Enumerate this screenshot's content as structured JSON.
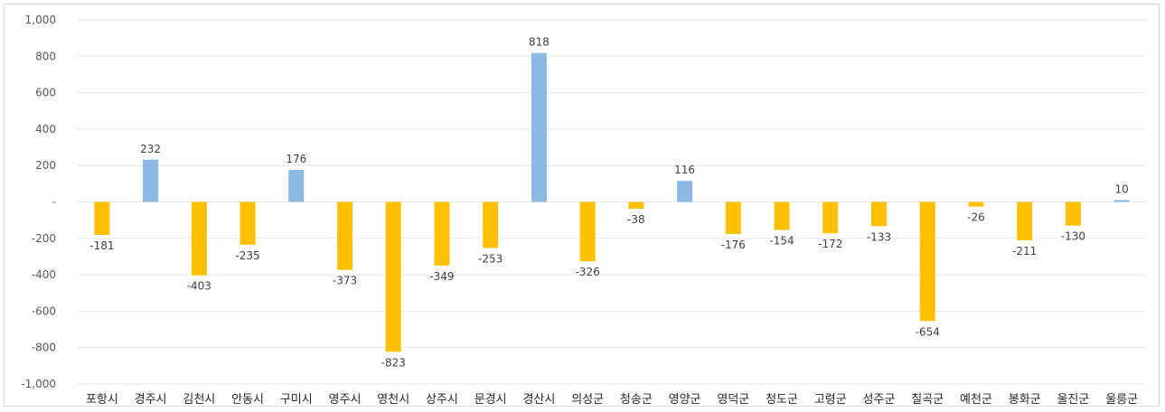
{
  "chart_data": {
    "type": "bar",
    "categories": [
      "포항시",
      "경주시",
      "김천시",
      "안동시",
      "구미시",
      "영주시",
      "영천시",
      "상주시",
      "문경시",
      "경산시",
      "의성군",
      "청송군",
      "영양군",
      "영덕군",
      "청도군",
      "고령군",
      "성주군",
      "칠곡군",
      "예천군",
      "봉화군",
      "울진군",
      "울릉군"
    ],
    "values": [
      -181,
      232,
      -403,
      -235,
      176,
      -373,
      -823,
      -349,
      -253,
      818,
      -326,
      -38,
      116,
      -176,
      -154,
      -172,
      -133,
      -654,
      -26,
      -211,
      -130,
      10
    ],
    "ylim": [
      -1000,
      1000
    ],
    "yticks": [
      1000,
      800,
      600,
      400,
      200,
      0,
      -200,
      -400,
      -600,
      -800,
      -1000
    ],
    "ytick_labels": [
      "1,000",
      "800",
      "600",
      "400",
      "200",
      "-",
      "-200",
      "-400",
      "-600",
      "-800",
      "-1,000"
    ],
    "grid": true,
    "colors": {
      "positive": "#8bb9e4",
      "negative": "#ffc000",
      "grid": "#e6e6e6"
    }
  }
}
